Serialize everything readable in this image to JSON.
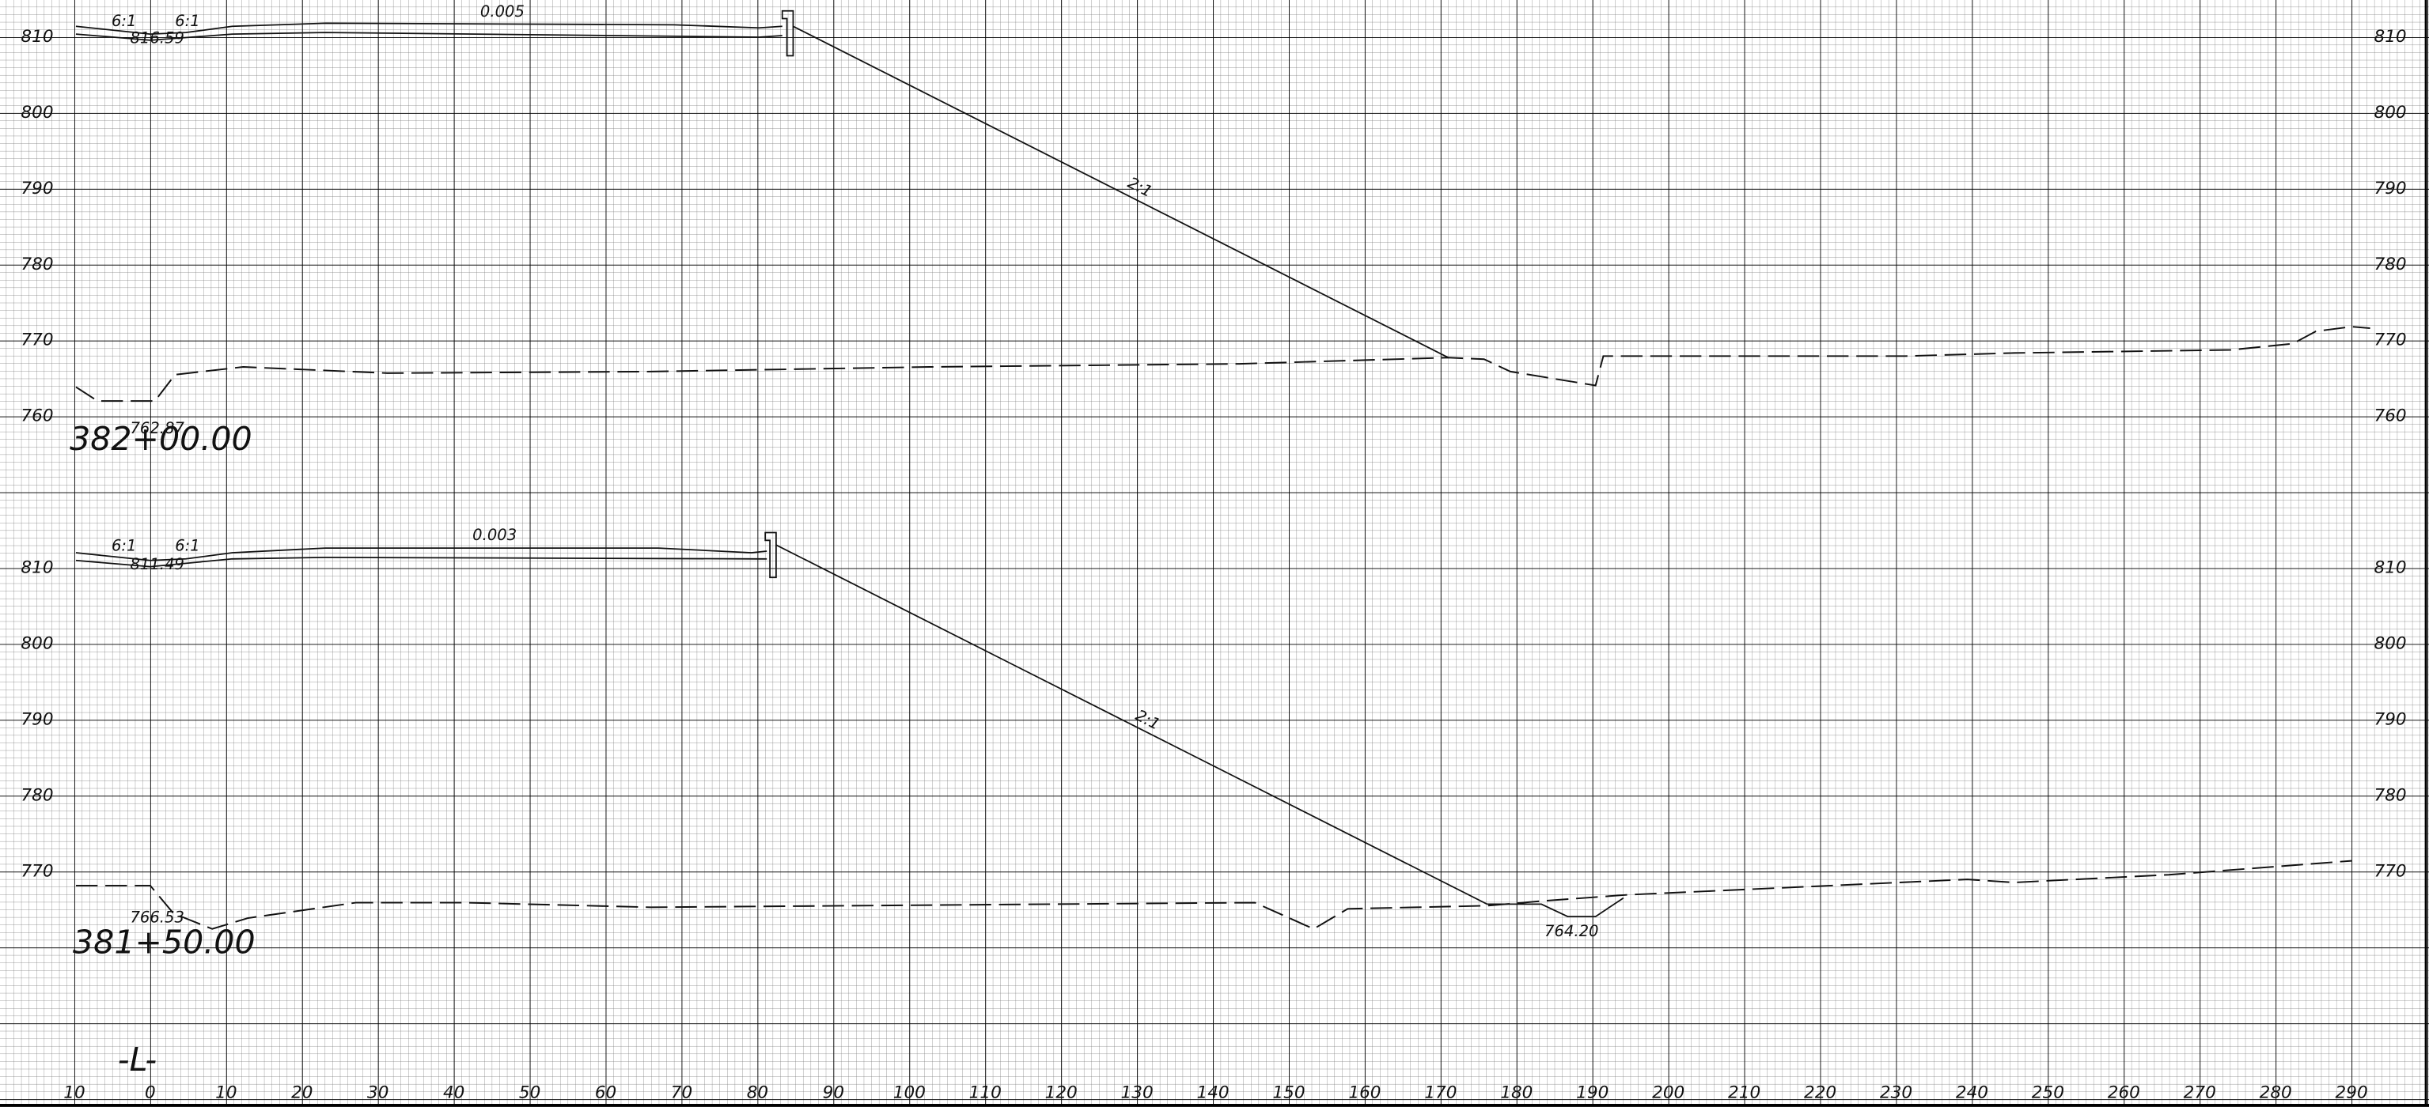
{
  "sections": [
    {
      "station": "382+00.00",
      "grade": "0.005",
      "slope_labels": [
        "6:1",
        "6:1",
        "2:1"
      ],
      "elevations": [
        "816.59",
        "762.87"
      ],
      "elevation_labels": [
        "810",
        "800",
        "790",
        "780",
        "770",
        "760"
      ]
    },
    {
      "station": "381+50.00",
      "grade": "0.003",
      "slope_labels": [
        "6:1",
        "6:1",
        "2:1"
      ],
      "elevations": [
        "811.49",
        "766.53",
        "764.20"
      ],
      "elevation_labels": [
        "810",
        "800",
        "790",
        "780",
        "770"
      ]
    }
  ],
  "x_labels": [
    "10",
    "0",
    "10",
    "20",
    "30",
    "40",
    "50",
    "60",
    "70",
    "80",
    "90",
    "100",
    "110",
    "120",
    "130",
    "140",
    "150",
    "160",
    "170",
    "180",
    "190",
    "200",
    "210",
    "220",
    "230",
    "240",
    "250",
    "260",
    "270",
    "280",
    "290"
  ],
  "centerline": "-L-"
}
